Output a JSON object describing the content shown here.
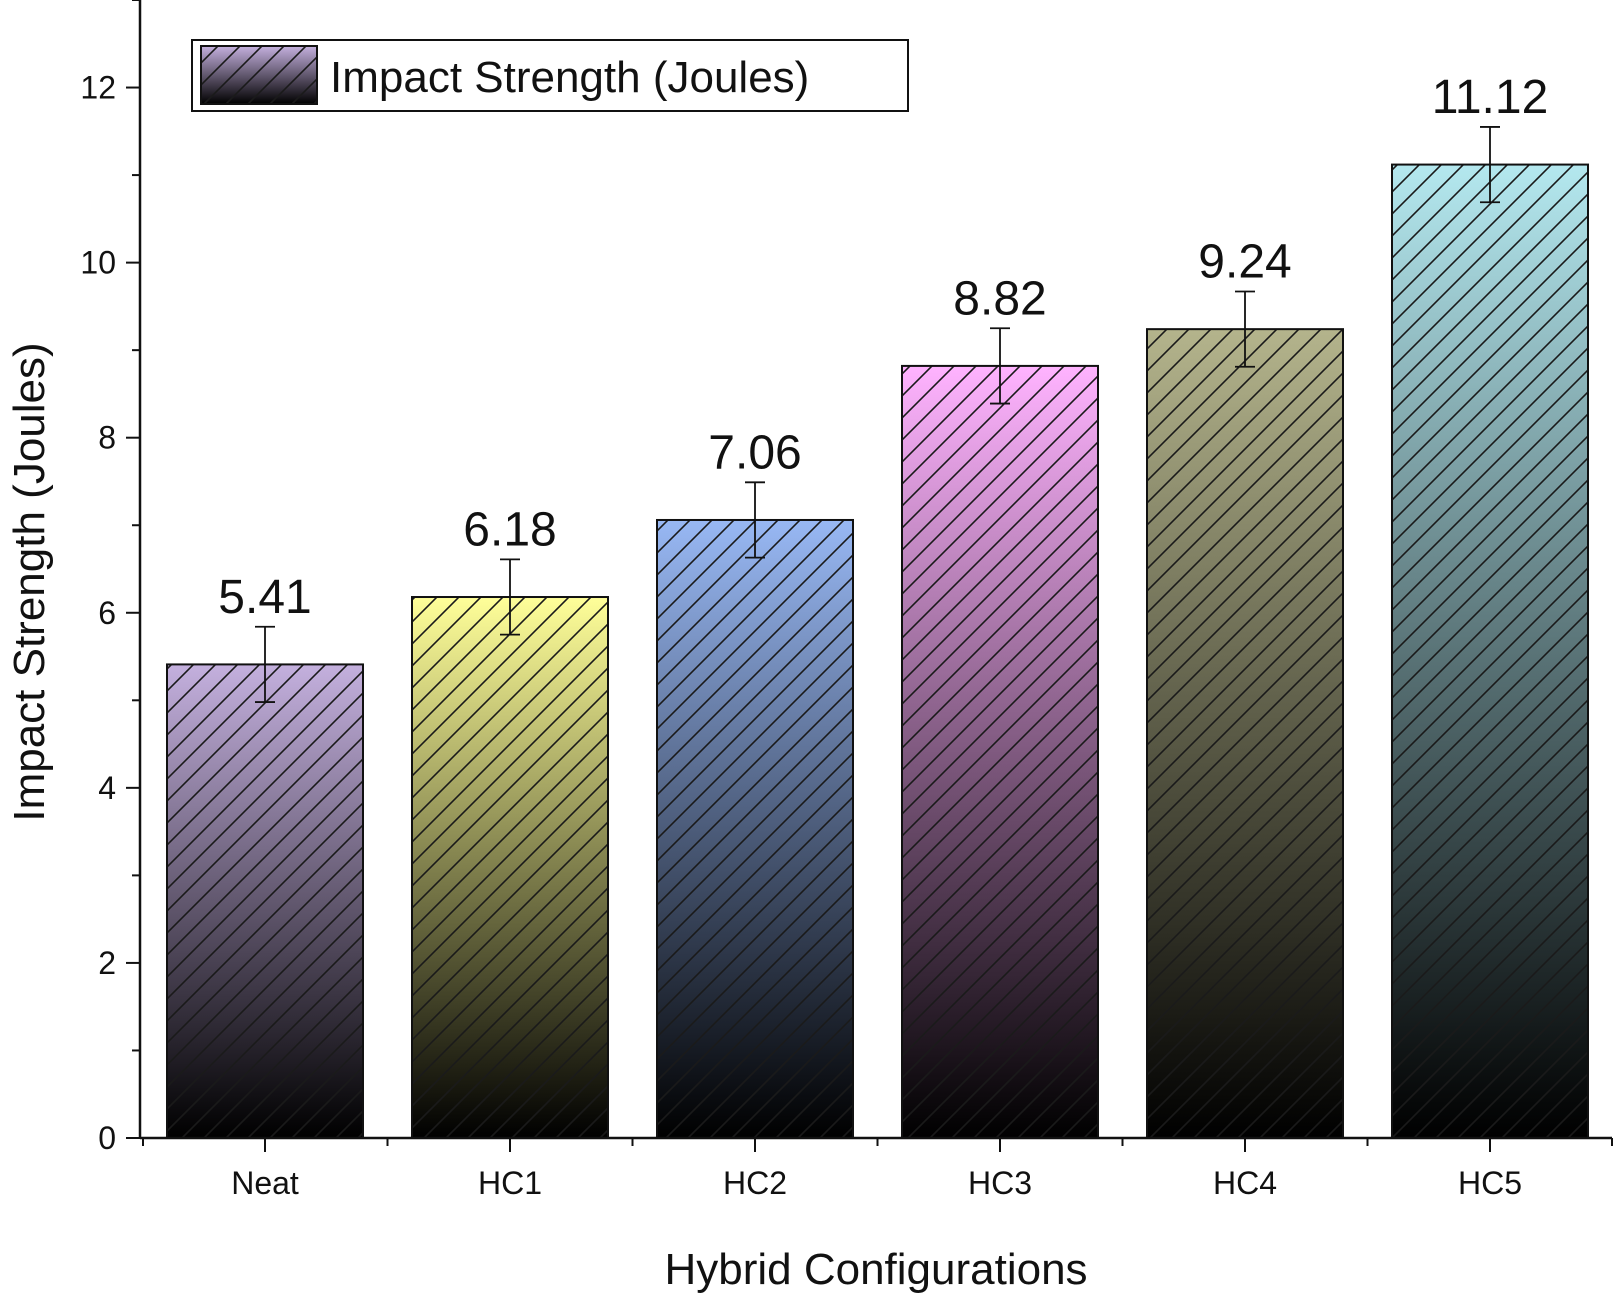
{
  "chart_data": {
    "type": "bar",
    "categories": [
      "Neat",
      "HC1",
      "HC2",
      "HC3",
      "HC4",
      "HC5"
    ],
    "series": [
      {
        "name": "Impact Strength (Joules)",
        "values": [
          5.41,
          6.18,
          7.06,
          8.82,
          9.24,
          11.12
        ],
        "errors": [
          0.43,
          0.43,
          0.43,
          0.43,
          0.43,
          0.43
        ],
        "data_labels": [
          "5.41",
          "6.18",
          "7.06",
          "8.82",
          "9.24",
          "11.12"
        ],
        "colors": [
          "#c4b0de",
          "#ffff99",
          "#98b8f4",
          "#ffb3ff",
          "#b4b48c",
          "#b4e8ef"
        ],
        "hatch": "diagonal",
        "gradient_to": "#000000"
      }
    ],
    "xlabel": "Hybrid Configurations",
    "ylabel": "Impact Strength (Joules)",
    "ylim": [
      0,
      13
    ],
    "yticks": [
      0,
      2,
      4,
      6,
      8,
      10,
      12
    ],
    "ytick_labels": [
      "0",
      "2",
      "4",
      "6",
      "8",
      "10",
      "12"
    ],
    "grid": false,
    "legend": {
      "placement": "top-left",
      "entries": [
        "Impact Strength (Joules)"
      ]
    }
  }
}
